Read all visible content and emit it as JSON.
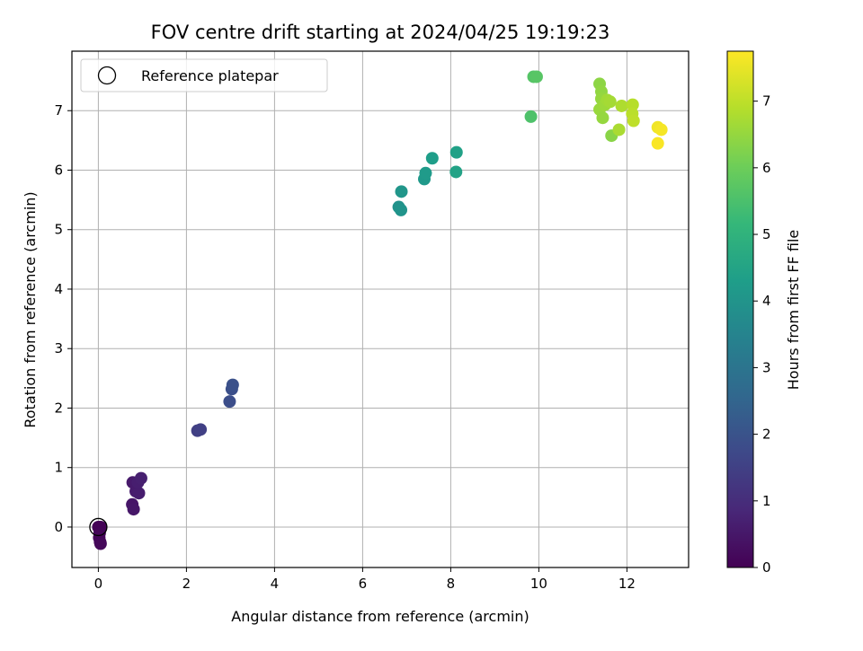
{
  "chart_data": {
    "type": "scatter",
    "title": "FOV centre drift starting at 2024/04/25 19:19:23",
    "xlabel": "Angular distance from reference (arcmin)",
    "ylabel": "Rotation from reference (arcmin)",
    "xlim": [
      -0.6,
      13.4
    ],
    "ylim": [
      -0.68,
      8.0
    ],
    "xticks": [
      0,
      2,
      4,
      6,
      8,
      10,
      12
    ],
    "yticks": [
      0,
      1,
      2,
      3,
      4,
      5,
      6,
      7
    ],
    "grid": true,
    "legend": {
      "placement": "upper-left",
      "entries": [
        {
          "label": "Reference platepar",
          "marker": "hollow-circle"
        }
      ]
    },
    "reference_point": {
      "x": 0,
      "y": 0
    },
    "colorbar": {
      "label": "Hours from first FF file",
      "range": [
        0,
        7.75
      ],
      "ticks": [
        0,
        1,
        2,
        3,
        4,
        5,
        6,
        7
      ],
      "colormap": [
        "#440154",
        "#482878",
        "#3e4989",
        "#31688e",
        "#26828e",
        "#1f9e89",
        "#35b779",
        "#6ece58",
        "#b5de2b",
        "#fde725"
      ]
    },
    "points": [
      {
        "x": 0.0,
        "y": 0.0,
        "t": 0.02
      },
      {
        "x": 0.05,
        "y": 0.0,
        "t": 0.05
      },
      {
        "x": 0.03,
        "y": -0.1,
        "t": 0.08
      },
      {
        "x": 0.02,
        "y": -0.18,
        "t": 0.1
      },
      {
        "x": 0.04,
        "y": -0.25,
        "t": 0.12
      },
      {
        "x": 0.05,
        "y": -0.28,
        "t": 0.15
      },
      {
        "x": 0.77,
        "y": 0.38,
        "t": 0.45
      },
      {
        "x": 0.8,
        "y": 0.3,
        "t": 0.48
      },
      {
        "x": 0.78,
        "y": 0.75,
        "t": 0.55
      },
      {
        "x": 0.85,
        "y": 0.6,
        "t": 0.58
      },
      {
        "x": 0.92,
        "y": 0.57,
        "t": 0.62
      },
      {
        "x": 0.9,
        "y": 0.75,
        "t": 0.65
      },
      {
        "x": 0.97,
        "y": 0.82,
        "t": 0.68
      },
      {
        "x": 2.25,
        "y": 1.62,
        "t": 1.45
      },
      {
        "x": 2.32,
        "y": 1.64,
        "t": 1.5
      },
      {
        "x": 2.98,
        "y": 2.11,
        "t": 1.85
      },
      {
        "x": 3.03,
        "y": 2.32,
        "t": 1.9
      },
      {
        "x": 3.05,
        "y": 2.39,
        "t": 1.95
      },
      {
        "x": 6.82,
        "y": 5.38,
        "t": 3.95
      },
      {
        "x": 6.87,
        "y": 5.33,
        "t": 4.0
      },
      {
        "x": 6.88,
        "y": 5.64,
        "t": 4.05
      },
      {
        "x": 7.4,
        "y": 5.85,
        "t": 4.15
      },
      {
        "x": 7.43,
        "y": 5.95,
        "t": 4.2
      },
      {
        "x": 7.58,
        "y": 6.2,
        "t": 4.3
      },
      {
        "x": 8.13,
        "y": 6.3,
        "t": 4.4
      },
      {
        "x": 8.12,
        "y": 5.97,
        "t": 4.45
      },
      {
        "x": 9.82,
        "y": 6.9,
        "t": 5.55
      },
      {
        "x": 9.88,
        "y": 7.57,
        "t": 5.65
      },
      {
        "x": 9.95,
        "y": 7.57,
        "t": 5.7
      },
      {
        "x": 11.38,
        "y": 7.45,
        "t": 6.4
      },
      {
        "x": 11.42,
        "y": 7.32,
        "t": 6.45
      },
      {
        "x": 11.42,
        "y": 7.2,
        "t": 6.5
      },
      {
        "x": 11.38,
        "y": 7.02,
        "t": 6.55
      },
      {
        "x": 11.45,
        "y": 6.88,
        "t": 6.5
      },
      {
        "x": 11.5,
        "y": 7.1,
        "t": 6.6
      },
      {
        "x": 11.55,
        "y": 7.18,
        "t": 6.65
      },
      {
        "x": 11.62,
        "y": 7.15,
        "t": 6.7
      },
      {
        "x": 11.65,
        "y": 6.58,
        "t": 6.35
      },
      {
        "x": 11.82,
        "y": 6.68,
        "t": 6.75
      },
      {
        "x": 11.88,
        "y": 7.08,
        "t": 6.8
      },
      {
        "x": 12.13,
        "y": 7.1,
        "t": 6.9
      },
      {
        "x": 12.12,
        "y": 6.95,
        "t": 6.95
      },
      {
        "x": 12.15,
        "y": 6.83,
        "t": 7.0
      },
      {
        "x": 12.7,
        "y": 6.72,
        "t": 7.6
      },
      {
        "x": 12.78,
        "y": 6.68,
        "t": 7.65
      },
      {
        "x": 12.7,
        "y": 6.45,
        "t": 7.7
      }
    ]
  }
}
